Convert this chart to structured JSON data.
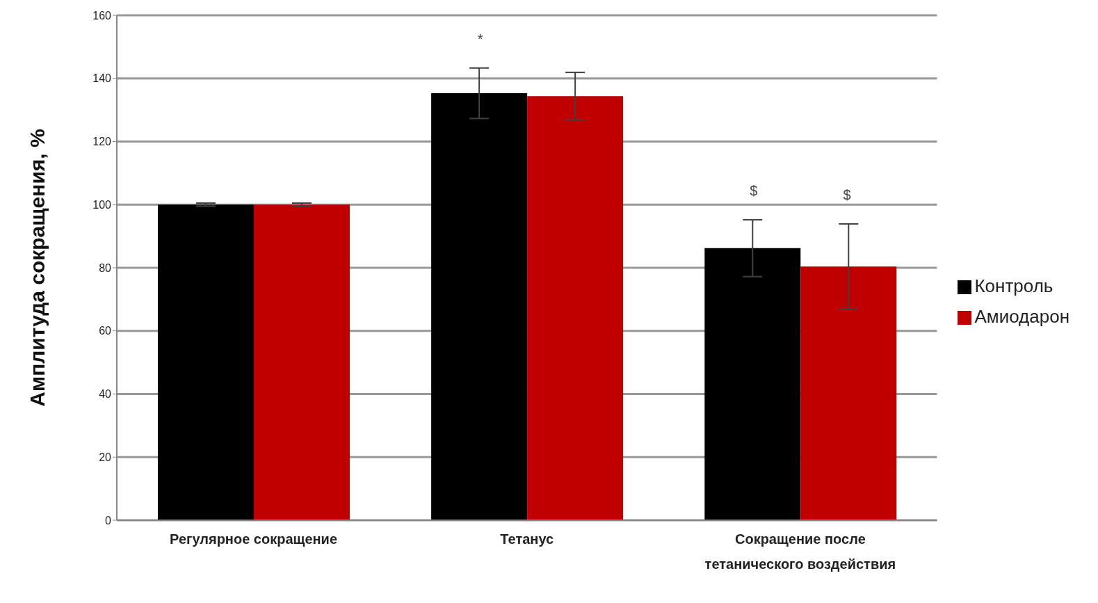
{
  "chart_data": {
    "type": "bar",
    "ylabel": "Амплитуда сокращения, %",
    "categories": [
      "Регулярное сокращение",
      "Тетанус",
      "Сокращение после тетанического воздействия"
    ],
    "series": [
      {
        "name": "Контроль",
        "color": "#000000",
        "values": [
          100,
          135.3,
          86.2
        ],
        "errors": [
          0.5,
          8,
          9
        ]
      },
      {
        "name": "Амиодарон",
        "color": "#c00000",
        "values": [
          100,
          134.4,
          80.4
        ],
        "errors": [
          0.5,
          7.5,
          13.5
        ]
      }
    ],
    "ylim": [
      0,
      160
    ],
    "yticks": [
      0,
      20,
      40,
      60,
      80,
      100,
      120,
      140,
      160
    ],
    "grid": "y",
    "legend": "right",
    "annotations": [
      "*",
      "$",
      "$"
    ]
  }
}
